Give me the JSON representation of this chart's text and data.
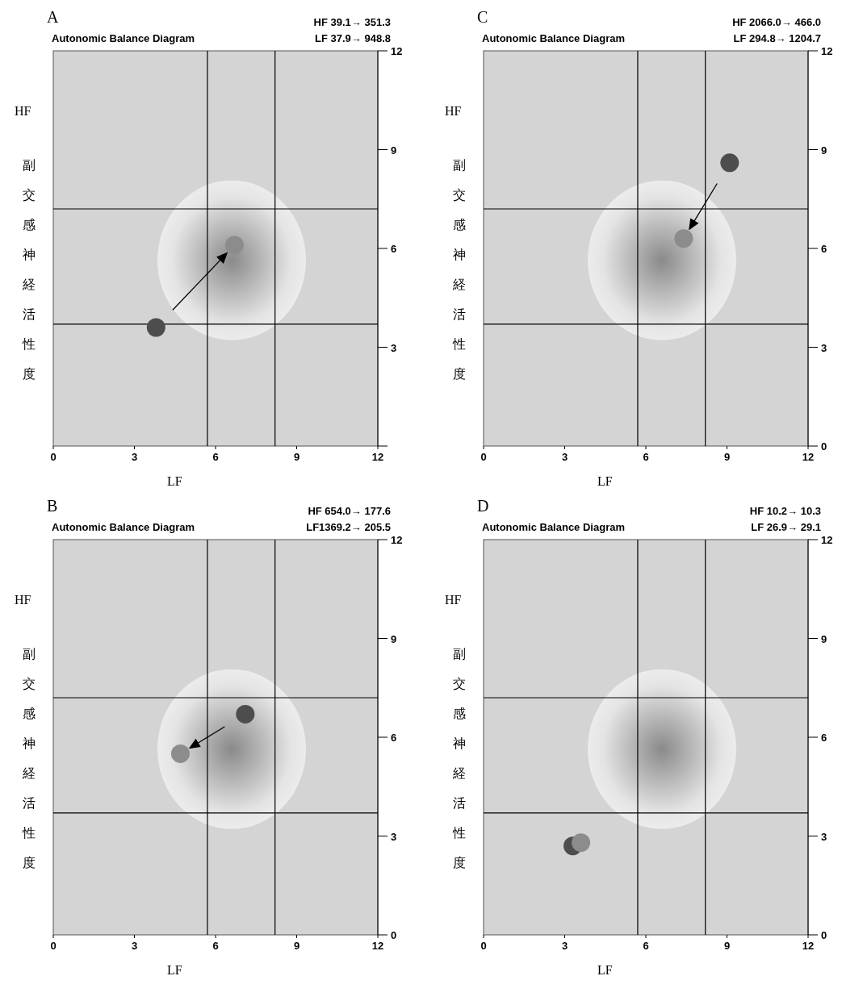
{
  "chart_data": [
    {
      "type": "scatter",
      "title": "A",
      "subtitle": "Autonomic Balance Diagram",
      "annotations": [
        "HF 39.1→ 351.3",
        "LF 37.9→ 948.8",
        "副交感神経活性度"
      ],
      "xlabel": "LF",
      "ylabel": "HF",
      "xlim": [
        0,
        12
      ],
      "ylim": [
        0,
        12
      ],
      "xticks": [
        0,
        3,
        6,
        9,
        12
      ],
      "yticks": [
        {
          "value": 0,
          "label": null
        },
        3,
        6,
        9,
        12
      ],
      "marker": "circle",
      "ref_lines": [
        {
          "axis": "x",
          "value": 5.7
        },
        {
          "axis": "x",
          "value": 8.2
        },
        {
          "axis": "y",
          "value": 3.7
        },
        {
          "axis": "y",
          "value": 7.2
        }
      ],
      "series": [
        {
          "color": "#4d4d4d",
          "x": [
            3.8
          ],
          "values": [
            3.6
          ]
        },
        {
          "color": "#8c8c8c",
          "x": [
            6.7
          ],
          "values": [
            6.1
          ]
        }
      ]
    },
    {
      "type": "scatter",
      "title": "C",
      "subtitle": "Autonomic Balance Diagram",
      "annotations": [
        "HF 2066.0→ 466.0",
        "LF 294.8→ 1204.7",
        "副交感神経活性度"
      ],
      "xlabel": "LF",
      "ylabel": "HF",
      "xlim": [
        0,
        12
      ],
      "ylim": [
        0,
        12
      ],
      "xticks": [
        0,
        3,
        6,
        9,
        12
      ],
      "yticks": [
        0,
        3,
        6,
        9,
        12
      ],
      "marker": "circle",
      "ref_lines": [
        {
          "axis": "x",
          "value": 5.7
        },
        {
          "axis": "x",
          "value": 8.2
        },
        {
          "axis": "y",
          "value": 3.7
        },
        {
          "axis": "y",
          "value": 7.2
        }
      ],
      "series": [
        {
          "color": "#4d4d4d",
          "x": [
            9.1
          ],
          "values": [
            8.6
          ]
        },
        {
          "color": "#8c8c8c",
          "x": [
            7.4
          ],
          "values": [
            6.3
          ]
        }
      ]
    },
    {
      "type": "scatter",
      "title": "B",
      "subtitle": "Autonomic Balance Diagram",
      "annotations": [
        "HF 654.0→ 177.6",
        "LF1369.2→ 205.5",
        "副交感神経活性度"
      ],
      "xlabel": "LF",
      "ylabel": "HF",
      "xlim": [
        0,
        12
      ],
      "ylim": [
        0,
        12
      ],
      "xticks": [
        0,
        3,
        6,
        9,
        12
      ],
      "yticks": [
        0,
        3,
        6,
        9,
        12
      ],
      "marker": "circle",
      "ref_lines": [
        {
          "axis": "x",
          "value": 5.7
        },
        {
          "axis": "x",
          "value": 8.2
        },
        {
          "axis": "y",
          "value": 3.7
        },
        {
          "axis": "y",
          "value": 7.2
        }
      ],
      "series": [
        {
          "color": "#4d4d4d",
          "x": [
            7.1
          ],
          "values": [
            6.7
          ]
        },
        {
          "color": "#8c8c8c",
          "x": [
            4.7
          ],
          "values": [
            5.5
          ]
        }
      ]
    },
    {
      "type": "scatter",
      "title": "D",
      "subtitle": "Autonomic Balance Diagram",
      "annotations": [
        "HF 10.2→ 10.3",
        "LF 26.9→ 29.1",
        "副交感神経活性度"
      ],
      "xlabel": "LF",
      "ylabel": "HF",
      "xlim": [
        0,
        12
      ],
      "ylim": [
        0,
        12
      ],
      "xticks": [
        0,
        3,
        6,
        9,
        12
      ],
      "yticks": [
        0,
        3,
        6,
        9,
        12
      ],
      "marker": "circle",
      "ref_lines": [
        {
          "axis": "x",
          "value": 5.7
        },
        {
          "axis": "x",
          "value": 8.2
        },
        {
          "axis": "y",
          "value": 3.7
        },
        {
          "axis": "y",
          "value": 7.2
        }
      ],
      "series": [
        {
          "color": "#4d4d4d",
          "x": [
            3.3
          ],
          "values": [
            2.7
          ]
        },
        {
          "color": "#8c8c8c",
          "x": [
            3.6
          ],
          "values": [
            2.8
          ]
        }
      ]
    }
  ]
}
